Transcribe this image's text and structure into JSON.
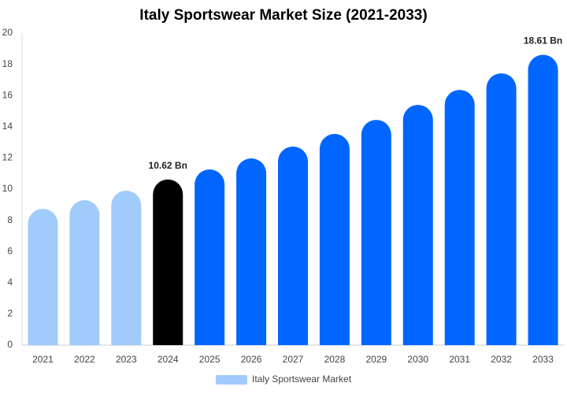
{
  "chart_data": {
    "type": "bar",
    "title": "Italy Sportswear Market Size (2021-2033)",
    "categories": [
      "2021",
      "2022",
      "2023",
      "2024",
      "2025",
      "2026",
      "2027",
      "2028",
      "2029",
      "2030",
      "2031",
      "2032",
      "2033"
    ],
    "series": [
      {
        "name": "Italy Sportswear Market",
        "color": "#a0cbfa",
        "values": [
          8.74,
          9.29,
          9.9,
          10.62,
          11.26,
          11.97,
          12.73,
          13.54,
          14.44,
          15.4,
          16.36,
          17.42,
          18.61
        ],
        "value_labels": [
          null,
          null,
          null,
          "10.62 Bn",
          null,
          null,
          null,
          null,
          null,
          null,
          null,
          null,
          "18.61 Bn"
        ],
        "bar_colors": [
          "#a0cbfa",
          "#a0cbfa",
          "#a0cbfa",
          "#000000",
          "#0066ff",
          "#0066ff",
          "#0066ff",
          "#0066ff",
          "#0066ff",
          "#0066ff",
          "#0066ff",
          "#0066ff",
          "#0066ff"
        ]
      }
    ],
    "ylim": [
      0,
      20
    ],
    "yticks": [
      0,
      2,
      4,
      6,
      8,
      10,
      12,
      14,
      16,
      18,
      20
    ],
    "grid": false,
    "legend": "bottom"
  }
}
